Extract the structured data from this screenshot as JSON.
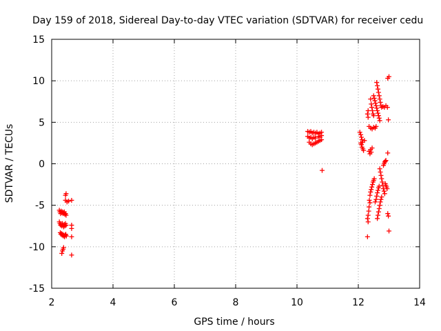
{
  "chart_data": {
    "type": "scatter",
    "title": "Day 159 of 2018, Sidereal Day-to-day VTEC variation (SDTVAR) for receiver cedu",
    "xlabel": "GPS time / hours",
    "ylabel": "SDTVAR / TECUs",
    "xlim": [
      2,
      14
    ],
    "ylim": [
      -15,
      15
    ],
    "xticks": [
      "2",
      "4",
      "6",
      "8",
      "10",
      "12",
      "14"
    ],
    "yticks": [
      "15",
      "10",
      "5",
      "0",
      "-5",
      "-10",
      "-15"
    ],
    "grid": true,
    "marker": "plus",
    "color": "#ff0000",
    "series": [
      {
        "values": [
          [
            2.25,
            -5.6
          ],
          [
            2.27,
            -5.8
          ],
          [
            2.29,
            -6.0
          ],
          [
            2.31,
            -5.7
          ],
          [
            2.33,
            -5.9
          ],
          [
            2.35,
            -5.8
          ],
          [
            2.37,
            -6.0
          ],
          [
            2.39,
            -5.9
          ],
          [
            2.41,
            -5.8
          ],
          [
            2.43,
            -6.1
          ],
          [
            2.45,
            -6.0
          ],
          [
            2.47,
            -6.2
          ],
          [
            2.25,
            -7.0
          ],
          [
            2.27,
            -7.2
          ],
          [
            2.29,
            -7.4
          ],
          [
            2.31,
            -7.3
          ],
          [
            2.33,
            -7.5
          ],
          [
            2.35,
            -7.2
          ],
          [
            2.37,
            -7.4
          ],
          [
            2.39,
            -7.6
          ],
          [
            2.41,
            -7.3
          ],
          [
            2.43,
            -7.5
          ],
          [
            2.45,
            -7.2
          ],
          [
            2.47,
            -7.4
          ],
          [
            2.28,
            -8.3
          ],
          [
            2.3,
            -8.5
          ],
          [
            2.32,
            -8.4
          ],
          [
            2.34,
            -8.6
          ],
          [
            2.36,
            -8.5
          ],
          [
            2.38,
            -8.7
          ],
          [
            2.4,
            -8.6
          ],
          [
            2.42,
            -8.8
          ],
          [
            2.44,
            -8.6
          ],
          [
            2.46,
            -8.5
          ],
          [
            2.48,
            -8.7
          ],
          [
            2.35,
            -10.5
          ],
          [
            2.37,
            -10.3
          ],
          [
            2.39,
            -10.1
          ],
          [
            2.33,
            -10.8
          ],
          [
            2.45,
            -3.8
          ],
          [
            2.47,
            -3.6
          ],
          [
            2.45,
            -4.4
          ],
          [
            2.5,
            -4.6
          ],
          [
            2.55,
            -4.5
          ],
          [
            2.65,
            -4.4
          ],
          [
            2.65,
            -7.4
          ],
          [
            2.65,
            -7.8
          ],
          [
            2.65,
            -8.8
          ],
          [
            2.65,
            -11.0
          ]
        ]
      },
      {
        "values": [
          [
            10.35,
            3.9
          ],
          [
            10.4,
            3.8
          ],
          [
            10.45,
            3.9
          ],
          [
            10.5,
            3.7
          ],
          [
            10.55,
            3.8
          ],
          [
            10.6,
            3.7
          ],
          [
            10.65,
            3.8
          ],
          [
            10.7,
            3.6
          ],
          [
            10.75,
            3.7
          ],
          [
            10.8,
            3.8
          ],
          [
            10.35,
            3.3
          ],
          [
            10.4,
            3.1
          ],
          [
            10.45,
            3.2
          ],
          [
            10.5,
            3.0
          ],
          [
            10.55,
            3.2
          ],
          [
            10.6,
            3.1
          ],
          [
            10.7,
            3.3
          ],
          [
            10.75,
            3.2
          ],
          [
            10.8,
            3.4
          ],
          [
            10.4,
            2.6
          ],
          [
            10.45,
            2.4
          ],
          [
            10.5,
            2.3
          ],
          [
            10.55,
            2.4
          ],
          [
            10.6,
            2.5
          ],
          [
            10.65,
            2.6
          ],
          [
            10.7,
            2.7
          ],
          [
            10.75,
            2.8
          ],
          [
            10.8,
            2.9
          ],
          [
            10.82,
            -0.8
          ]
        ]
      },
      {
        "values": [
          [
            12.05,
            3.8
          ],
          [
            12.08,
            3.5
          ],
          [
            12.1,
            3.2
          ],
          [
            12.12,
            2.9
          ],
          [
            12.14,
            2.6
          ],
          [
            12.1,
            2.3
          ],
          [
            12.12,
            2.0
          ],
          [
            12.15,
            1.8
          ],
          [
            12.17,
            1.6
          ],
          [
            12.2,
            2.8
          ],
          [
            12.08,
            2.5
          ],
          [
            12.3,
            6.0
          ],
          [
            12.32,
            5.6
          ],
          [
            12.32,
            6.4
          ],
          [
            12.35,
            1.5
          ],
          [
            12.4,
            1.7
          ],
          [
            12.45,
            1.9
          ],
          [
            12.38,
            1.2
          ],
          [
            12.42,
            1.4
          ],
          [
            12.35,
            4.5
          ],
          [
            12.4,
            4.3
          ],
          [
            12.45,
            4.2
          ],
          [
            12.5,
            4.4
          ],
          [
            12.55,
            4.3
          ],
          [
            12.58,
            4.5
          ],
          [
            12.4,
            7.8
          ],
          [
            12.42,
            7.2
          ],
          [
            12.44,
            6.8
          ],
          [
            12.46,
            6.4
          ],
          [
            12.48,
            6.0
          ],
          [
            12.5,
            5.8
          ],
          [
            12.5,
            8.2
          ],
          [
            12.52,
            7.9
          ],
          [
            12.54,
            7.6
          ],
          [
            12.56,
            7.3
          ],
          [
            12.58,
            7.0
          ],
          [
            12.6,
            6.7
          ],
          [
            12.62,
            6.4
          ],
          [
            12.64,
            6.1
          ],
          [
            12.66,
            5.8
          ],
          [
            12.68,
            5.5
          ],
          [
            12.7,
            5.2
          ],
          [
            12.6,
            9.8
          ],
          [
            12.62,
            9.4
          ],
          [
            12.64,
            9.0
          ],
          [
            12.66,
            8.6
          ],
          [
            12.68,
            8.2
          ],
          [
            12.7,
            7.8
          ],
          [
            12.72,
            7.4
          ],
          [
            12.74,
            7.0
          ],
          [
            12.76,
            6.8
          ],
          [
            12.8,
            6.9
          ],
          [
            12.85,
            6.8
          ],
          [
            12.9,
            7.0
          ],
          [
            12.95,
            6.8
          ],
          [
            12.98,
            5.3
          ],
          [
            12.96,
            10.3
          ],
          [
            13.0,
            10.5
          ],
          [
            12.38,
            -3.8
          ],
          [
            12.4,
            -3.4
          ],
          [
            12.42,
            -3.1
          ],
          [
            12.44,
            -2.8
          ],
          [
            12.46,
            -2.5
          ],
          [
            12.48,
            -2.2
          ],
          [
            12.5,
            -2.0
          ],
          [
            12.52,
            -1.8
          ],
          [
            12.36,
            -4.4
          ],
          [
            12.38,
            -4.7
          ],
          [
            12.35,
            -5.2
          ],
          [
            12.34,
            -5.7
          ],
          [
            12.32,
            -6.2
          ],
          [
            12.3,
            -6.6
          ],
          [
            12.32,
            -7.0
          ],
          [
            12.55,
            -4.6
          ],
          [
            12.58,
            -4.3
          ],
          [
            12.6,
            -3.9
          ],
          [
            12.62,
            -3.5
          ],
          [
            12.64,
            -3.2
          ],
          [
            12.66,
            -2.9
          ],
          [
            12.68,
            -2.7
          ],
          [
            12.62,
            -6.6
          ],
          [
            12.64,
            -6.2
          ],
          [
            12.66,
            -5.8
          ],
          [
            12.68,
            -5.4
          ],
          [
            12.7,
            -5.0
          ],
          [
            12.72,
            -4.6
          ],
          [
            12.74,
            -4.3
          ],
          [
            12.76,
            -4.0
          ],
          [
            12.7,
            -0.6
          ],
          [
            12.72,
            -1.0
          ],
          [
            12.74,
            -1.4
          ],
          [
            12.76,
            -1.8
          ],
          [
            12.78,
            -2.2
          ],
          [
            12.8,
            -2.6
          ],
          [
            12.82,
            -3.0
          ],
          [
            12.84,
            -3.3
          ],
          [
            12.86,
            -3.6
          ],
          [
            12.82,
            -0.2
          ],
          [
            12.84,
            0.0
          ],
          [
            12.86,
            0.2
          ],
          [
            12.88,
            0.3
          ],
          [
            12.9,
            0.4
          ],
          [
            12.88,
            -2.4
          ],
          [
            12.9,
            -2.6
          ],
          [
            12.92,
            -2.8
          ],
          [
            12.94,
            -3.0
          ],
          [
            12.96,
            1.3
          ],
          [
            12.96,
            -6.0
          ],
          [
            12.98,
            -6.3
          ],
          [
            13.0,
            -8.1
          ],
          [
            12.3,
            -8.8
          ]
        ]
      }
    ]
  }
}
